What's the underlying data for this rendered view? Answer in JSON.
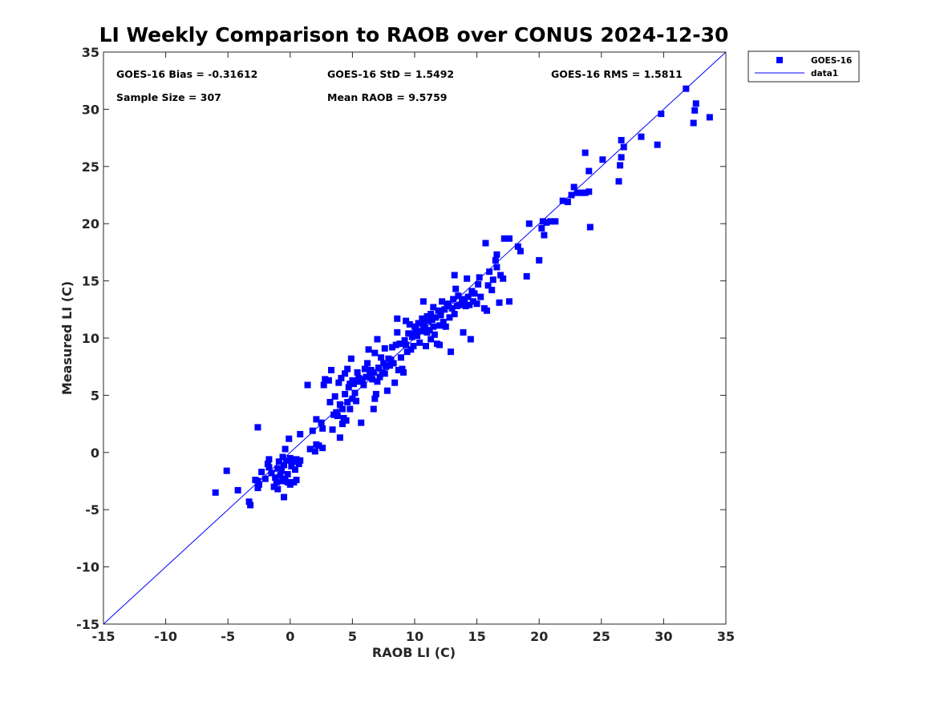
{
  "chart_data": {
    "type": "scatter",
    "title": "LI Weekly Comparison to RAOB over CONUS 2024-12-30",
    "xlabel": "RAOB LI (C)",
    "ylabel": "Measured LI (C)",
    "xlim": [
      -15,
      35
    ],
    "ylim": [
      -15,
      35
    ],
    "xticks": [
      -15,
      -10,
      -5,
      0,
      5,
      10,
      15,
      20,
      25,
      30,
      35
    ],
    "yticks": [
      -15,
      -10,
      -5,
      0,
      5,
      10,
      15,
      20,
      25,
      30,
      35
    ],
    "xtick_labels": [
      "-15",
      "-10",
      "-5",
      "0",
      "5",
      "10",
      "15",
      "20",
      "25",
      "30",
      "35"
    ],
    "ytick_labels": [
      "-15",
      "-10",
      "-5",
      "0",
      "5",
      "10",
      "15",
      "20",
      "25",
      "30",
      "35"
    ],
    "grid": false,
    "legend_position": "outside-top-right",
    "stats": {
      "bias": "GOES-16 Bias = -0.31612",
      "std": "GOES-16 StD = 1.5492",
      "rms": "GOES-16 RMS = 1.5811",
      "sample_size": "Sample Size = 307",
      "mean_raob": "Mean RAOB = 9.5759"
    },
    "series": [
      {
        "name": "GOES-16",
        "kind": "scatter",
        "color": "#0000ff",
        "marker": "square",
        "points": [
          [
            -6.0,
            -3.5
          ],
          [
            -5.1,
            -1.6
          ],
          [
            -4.2,
            -3.3
          ],
          [
            -3.3,
            -4.3
          ],
          [
            -3.2,
            -4.6
          ],
          [
            -2.8,
            -2.4
          ],
          [
            -2.6,
            2.2
          ],
          [
            -2.6,
            -2.5
          ],
          [
            -2.6,
            -3.1
          ],
          [
            -2.5,
            -2.8
          ],
          [
            -2.3,
            -1.7
          ],
          [
            -2.0,
            -2.3
          ],
          [
            -1.8,
            -1.0
          ],
          [
            -1.7,
            -1.3
          ],
          [
            -1.7,
            -0.6
          ],
          [
            -1.5,
            -1.8
          ],
          [
            -1.3,
            -3.0
          ],
          [
            -1.2,
            -2.2
          ],
          [
            -1.1,
            -2.6
          ],
          [
            -1.0,
            -1.4
          ],
          [
            -1.0,
            -3.2
          ],
          [
            -0.9,
            -0.8
          ],
          [
            -0.8,
            -2.0
          ],
          [
            -0.7,
            -1.6
          ],
          [
            -0.6,
            -0.4
          ],
          [
            -0.6,
            -2.5
          ],
          [
            -0.5,
            -1.1
          ],
          [
            -0.5,
            -3.9
          ],
          [
            -0.4,
            0.3
          ],
          [
            -0.4,
            -2.3
          ],
          [
            -0.3,
            -0.7
          ],
          [
            -0.2,
            -2.6
          ],
          [
            -0.2,
            -1.9
          ],
          [
            -0.1,
            1.2
          ],
          [
            0.0,
            -0.5
          ],
          [
            0.0,
            -2.8
          ],
          [
            0.1,
            -1.2
          ],
          [
            0.2,
            -0.8
          ],
          [
            0.3,
            -2.6
          ],
          [
            0.4,
            -1.5
          ],
          [
            0.5,
            -2.4
          ],
          [
            0.5,
            -0.6
          ],
          [
            0.7,
            -1.0
          ],
          [
            0.8,
            -0.7
          ],
          [
            0.8,
            1.6
          ],
          [
            1.4,
            5.9
          ],
          [
            1.6,
            0.3
          ],
          [
            1.8,
            1.9
          ],
          [
            2.0,
            0.1
          ],
          [
            2.1,
            0.7
          ],
          [
            2.1,
            2.9
          ],
          [
            2.3,
            0.6
          ],
          [
            2.5,
            2.6
          ],
          [
            2.6,
            0.4
          ],
          [
            2.6,
            2.1
          ],
          [
            2.7,
            5.9
          ],
          [
            2.8,
            6.4
          ],
          [
            3.1,
            6.3
          ],
          [
            3.2,
            4.4
          ],
          [
            3.3,
            7.2
          ],
          [
            3.4,
            2.0
          ],
          [
            3.5,
            3.3
          ],
          [
            3.6,
            4.9
          ],
          [
            3.7,
            3.5
          ],
          [
            3.8,
            3.2
          ],
          [
            3.9,
            6.1
          ],
          [
            4.0,
            1.3
          ],
          [
            4.0,
            4.2
          ],
          [
            4.1,
            6.5
          ],
          [
            4.2,
            3.8
          ],
          [
            4.2,
            2.5
          ],
          [
            4.3,
            3.0
          ],
          [
            4.4,
            5.1
          ],
          [
            4.4,
            6.9
          ],
          [
            4.5,
            2.8
          ],
          [
            4.6,
            7.3
          ],
          [
            4.6,
            4.4
          ],
          [
            4.7,
            5.7
          ],
          [
            4.8,
            3.8
          ],
          [
            4.8,
            6.0
          ],
          [
            4.9,
            8.2
          ],
          [
            5.0,
            6.3
          ],
          [
            5.0,
            4.7
          ],
          [
            5.1,
            6.0
          ],
          [
            5.2,
            5.2
          ],
          [
            5.3,
            4.5
          ],
          [
            5.4,
            7.0
          ],
          [
            5.5,
            6.5
          ],
          [
            5.6,
            6.2
          ],
          [
            5.7,
            2.6
          ],
          [
            5.8,
            6.4
          ],
          [
            5.9,
            5.9
          ],
          [
            6.0,
            7.3
          ],
          [
            6.1,
            6.6
          ],
          [
            6.2,
            7.8
          ],
          [
            6.3,
            9.0
          ],
          [
            6.4,
            6.9
          ],
          [
            6.5,
            7.2
          ],
          [
            6.6,
            6.4
          ],
          [
            6.7,
            3.8
          ],
          [
            6.7,
            7.0
          ],
          [
            6.8,
            4.7
          ],
          [
            6.8,
            8.7
          ],
          [
            6.9,
            5.1
          ],
          [
            7.0,
            9.9
          ],
          [
            7.0,
            6.2
          ],
          [
            7.1,
            7.4
          ],
          [
            7.2,
            6.6
          ],
          [
            7.3,
            8.3
          ],
          [
            7.4,
            7.0
          ],
          [
            7.5,
            7.8
          ],
          [
            7.6,
            9.1
          ],
          [
            7.6,
            6.9
          ],
          [
            7.7,
            7.5
          ],
          [
            7.8,
            5.4
          ],
          [
            7.9,
            8.2
          ],
          [
            8.0,
            7.6
          ],
          [
            8.1,
            8.1
          ],
          [
            8.2,
            9.2
          ],
          [
            8.3,
            7.8
          ],
          [
            8.4,
            6.1
          ],
          [
            8.5,
            9.4
          ],
          [
            8.6,
            10.5
          ],
          [
            8.6,
            11.7
          ],
          [
            8.7,
            7.2
          ],
          [
            8.8,
            9.5
          ],
          [
            8.9,
            8.3
          ],
          [
            9.0,
            7.3
          ],
          [
            9.1,
            7.0
          ],
          [
            9.2,
            9.8
          ],
          [
            9.3,
            11.5
          ],
          [
            9.3,
            9.4
          ],
          [
            9.4,
            8.8
          ],
          [
            9.5,
            10.4
          ],
          [
            9.6,
            11.2
          ],
          [
            9.7,
            9.0
          ],
          [
            9.8,
            10.1
          ],
          [
            9.9,
            9.3
          ],
          [
            10.0,
            11.0
          ],
          [
            10.0,
            10.4
          ],
          [
            10.1,
            10.9
          ],
          [
            10.2,
            10.2
          ],
          [
            10.3,
            11.3
          ],
          [
            10.4,
            9.6
          ],
          [
            10.5,
            10.6
          ],
          [
            10.6,
            11.7
          ],
          [
            10.7,
            10.9
          ],
          [
            10.7,
            13.2
          ],
          [
            10.8,
            11.2
          ],
          [
            10.9,
            9.3
          ],
          [
            11.0,
            11.9
          ],
          [
            11.0,
            10.5
          ],
          [
            11.1,
            11.5
          ],
          [
            11.2,
            10.7
          ],
          [
            11.3,
            12.1
          ],
          [
            11.3,
            9.9
          ],
          [
            11.4,
            11.6
          ],
          [
            11.5,
            11.0
          ],
          [
            11.5,
            12.7
          ],
          [
            11.6,
            10.3
          ],
          [
            11.7,
            11.8
          ],
          [
            11.8,
            9.5
          ],
          [
            11.9,
            12.4
          ],
          [
            12.0,
            11.1
          ],
          [
            12.0,
            9.4
          ],
          [
            12.1,
            12.0
          ],
          [
            12.2,
            13.2
          ],
          [
            12.3,
            11.4
          ],
          [
            12.4,
            12.5
          ],
          [
            12.5,
            11.0
          ],
          [
            12.6,
            12.8
          ],
          [
            12.7,
            13.0
          ],
          [
            12.8,
            11.8
          ],
          [
            12.9,
            8.8
          ],
          [
            13.0,
            12.6
          ],
          [
            13.1,
            13.4
          ],
          [
            13.2,
            15.5
          ],
          [
            13.2,
            12.1
          ],
          [
            13.3,
            14.3
          ],
          [
            13.4,
            12.8
          ],
          [
            13.5,
            13.7
          ],
          [
            13.6,
            12.9
          ],
          [
            13.8,
            13.4
          ],
          [
            13.9,
            10.5
          ],
          [
            14.0,
            13.1
          ],
          [
            14.1,
            12.8
          ],
          [
            14.2,
            15.2
          ],
          [
            14.3,
            13.6
          ],
          [
            14.4,
            12.9
          ],
          [
            14.5,
            9.9
          ],
          [
            14.6,
            14.1
          ],
          [
            14.7,
            13.2
          ],
          [
            14.8,
            13.9
          ],
          [
            15.0,
            13.0
          ],
          [
            15.1,
            14.7
          ],
          [
            15.2,
            15.3
          ],
          [
            15.3,
            13.6
          ],
          [
            15.6,
            12.6
          ],
          [
            15.7,
            18.3
          ],
          [
            15.8,
            12.4
          ],
          [
            15.9,
            14.6
          ],
          [
            16.0,
            15.8
          ],
          [
            16.2,
            14.2
          ],
          [
            16.3,
            15.1
          ],
          [
            16.5,
            16.8
          ],
          [
            16.6,
            17.3
          ],
          [
            16.6,
            16.2
          ],
          [
            16.8,
            13.1
          ],
          [
            16.9,
            15.5
          ],
          [
            17.1,
            15.2
          ],
          [
            17.2,
            18.7
          ],
          [
            17.6,
            18.7
          ],
          [
            17.6,
            13.2
          ],
          [
            18.3,
            18.0
          ],
          [
            18.5,
            17.6
          ],
          [
            19.0,
            15.4
          ],
          [
            19.2,
            20.0
          ],
          [
            20.0,
            16.8
          ],
          [
            20.2,
            19.6
          ],
          [
            20.3,
            20.2
          ],
          [
            20.4,
            19.0
          ],
          [
            20.6,
            20.1
          ],
          [
            20.9,
            20.2
          ],
          [
            21.3,
            20.2
          ],
          [
            21.9,
            22.0
          ],
          [
            22.3,
            21.9
          ],
          [
            22.6,
            22.5
          ],
          [
            22.8,
            23.2
          ],
          [
            23.1,
            22.7
          ],
          [
            23.4,
            22.7
          ],
          [
            23.7,
            22.7
          ],
          [
            23.7,
            26.2
          ],
          [
            24.0,
            24.6
          ],
          [
            24.0,
            22.8
          ],
          [
            24.1,
            19.7
          ],
          [
            25.1,
            25.6
          ],
          [
            26.4,
            23.7
          ],
          [
            26.5,
            25.1
          ],
          [
            26.6,
            25.8
          ],
          [
            26.6,
            27.3
          ],
          [
            26.8,
            26.7
          ],
          [
            28.2,
            27.6
          ],
          [
            29.5,
            26.9
          ],
          [
            29.8,
            29.6
          ],
          [
            31.8,
            31.8
          ],
          [
            32.4,
            28.8
          ],
          [
            32.5,
            29.9
          ],
          [
            32.6,
            30.5
          ],
          [
            33.7,
            29.3
          ]
        ]
      },
      {
        "name": "data1",
        "kind": "line",
        "color": "#0000ff",
        "x": [
          -15,
          35
        ],
        "y": [
          -15,
          35
        ]
      }
    ]
  }
}
